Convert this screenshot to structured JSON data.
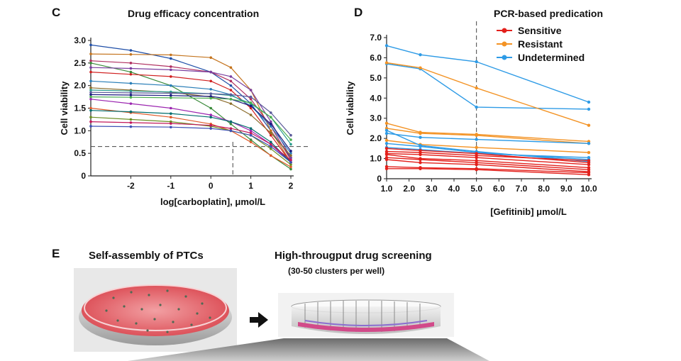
{
  "panels": {
    "c": {
      "letter": "C",
      "title": "Drug efficacy concentration"
    },
    "d": {
      "letter": "D",
      "title": "PCR-based predication"
    },
    "e": {
      "letter": "E",
      "left_title": "Self-assembly of PTCs",
      "right_title": "High-througput drug screening",
      "right_subtitle": "(30-50 clusters per well)"
    }
  },
  "chart_data": [
    {
      "type": "line",
      "title": "Drug efficacy concentration",
      "xlabel": "log[carboplatin], μmol/L",
      "ylabel": "Cell viability",
      "xlim": [
        -3,
        2
      ],
      "ylim": [
        0,
        3
      ],
      "x_ticks": [
        "-2",
        "-1",
        "0",
        "1",
        "2"
      ],
      "y_ticks": [
        "0",
        "0.5",
        "1.0",
        "1.5",
        "2.0",
        "2.5",
        "3.0"
      ],
      "reference_lines": {
        "y": 0.65,
        "x": 0.55
      },
      "grid": false,
      "x": [
        -3,
        -2,
        -1,
        0,
        0.5,
        1,
        1.5,
        2
      ],
      "series": [
        {
          "color": "#1f4fa8",
          "values": [
            2.9,
            2.78,
            2.6,
            2.3,
            2.0,
            1.6,
            1.0,
            0.4
          ]
        },
        {
          "color": "#c4741e",
          "values": [
            2.7,
            2.69,
            2.68,
            2.62,
            2.4,
            1.9,
            1.0,
            0.3
          ]
        },
        {
          "color": "#b03060",
          "values": [
            2.55,
            2.5,
            2.42,
            2.3,
            2.1,
            1.7,
            1.1,
            0.35
          ]
        },
        {
          "color": "#3a8a3a",
          "values": [
            2.5,
            2.3,
            2.0,
            1.5,
            1.15,
            0.8,
            0.45,
            0.15
          ]
        },
        {
          "color": "#7a3fa0",
          "values": [
            2.4,
            2.38,
            2.35,
            2.3,
            2.2,
            1.9,
            1.2,
            0.4
          ]
        },
        {
          "color": "#d02020",
          "values": [
            2.3,
            2.25,
            2.2,
            2.1,
            1.9,
            1.5,
            0.9,
            0.3
          ]
        },
        {
          "color": "#2b7fb8",
          "values": [
            2.1,
            2.05,
            2.0,
            1.92,
            1.8,
            1.55,
            1.1,
            0.5
          ]
        },
        {
          "color": "#8c6d2c",
          "values": [
            1.95,
            1.9,
            1.85,
            1.75,
            1.6,
            1.35,
            0.95,
            0.45
          ]
        },
        {
          "color": "#2a9d8f",
          "values": [
            1.9,
            1.88,
            1.86,
            1.82,
            1.78,
            1.6,
            1.3,
            0.7
          ]
        },
        {
          "color": "#5b5b9a",
          "values": [
            1.85,
            1.84,
            1.83,
            1.82,
            1.8,
            1.75,
            1.4,
            0.9
          ]
        },
        {
          "color": "#1a1a80",
          "values": [
            1.8,
            1.79,
            1.78,
            1.76,
            1.7,
            1.55,
            1.15,
            0.55
          ]
        },
        {
          "color": "#4caf50",
          "values": [
            1.75,
            1.74,
            1.73,
            1.72,
            1.7,
            1.62,
            1.3,
            0.8
          ]
        },
        {
          "color": "#9c27b0",
          "values": [
            1.7,
            1.6,
            1.5,
            1.35,
            1.2,
            1.0,
            0.7,
            0.3
          ]
        },
        {
          "color": "#e05a2a",
          "values": [
            1.5,
            1.4,
            1.3,
            1.15,
            1.0,
            0.75,
            0.45,
            0.2
          ]
        },
        {
          "color": "#006d6d",
          "values": [
            1.45,
            1.42,
            1.38,
            1.3,
            1.2,
            1.05,
            0.75,
            0.3
          ]
        },
        {
          "color": "#6b8e23",
          "values": [
            1.3,
            1.25,
            1.2,
            1.1,
            1.0,
            0.9,
            0.6,
            0.25
          ]
        },
        {
          "color": "#c2185b",
          "values": [
            1.2,
            1.18,
            1.16,
            1.12,
            1.05,
            0.95,
            0.7,
            0.35
          ]
        },
        {
          "color": "#3f51b5",
          "values": [
            1.1,
            1.09,
            1.08,
            1.05,
            1.0,
            0.9,
            0.65,
            0.3
          ]
        }
      ]
    },
    {
      "type": "line",
      "title": "PCR-based predication",
      "xlabel": "[Gefitinib]  μmol/L",
      "ylabel": "Cell viability",
      "xlim": [
        1.0,
        10.0
      ],
      "ylim": [
        0,
        7.0
      ],
      "x_ticks": [
        "1.0",
        "2.0",
        "3.0",
        "4.0",
        "5.0",
        "6.0",
        "7.0",
        "8.0",
        "9.0",
        "10.0"
      ],
      "y_ticks": [
        "0",
        "1.0",
        "2.0",
        "3.0",
        "4.0",
        "5.0",
        "6.0",
        "7.0"
      ],
      "reference_lines": {
        "x": 5.0
      },
      "grid": false,
      "legend": {
        "position": "top-right",
        "entries": [
          {
            "label": "Sensitive",
            "color": "#e3201b"
          },
          {
            "label": "Resistant",
            "color": "#f39325"
          },
          {
            "label": "Undetermined",
            "color": "#2e9be6"
          }
        ]
      },
      "x": [
        1.0,
        2.5,
        5.0,
        10.0
      ],
      "series": [
        {
          "group": "Undetermined",
          "color": "#2e9be6",
          "values": [
            6.6,
            6.15,
            5.8,
            3.8
          ]
        },
        {
          "group": "Undetermined",
          "color": "#2e9be6",
          "values": [
            5.7,
            5.45,
            3.55,
            3.45
          ]
        },
        {
          "group": "Resistant",
          "color": "#f39325",
          "values": [
            5.75,
            5.5,
            4.5,
            2.65
          ]
        },
        {
          "group": "Resistant",
          "color": "#f39325",
          "values": [
            2.75,
            2.3,
            2.2,
            1.85
          ]
        },
        {
          "group": "Resistant",
          "color": "#f39325",
          "values": [
            2.5,
            2.25,
            2.15,
            1.75
          ]
        },
        {
          "group": "Resistant",
          "color": "#f39325",
          "values": [
            1.9,
            1.7,
            1.55,
            1.3
          ]
        },
        {
          "group": "Undetermined",
          "color": "#2e9be6",
          "values": [
            2.4,
            1.65,
            1.35,
            0.85
          ]
        },
        {
          "group": "Undetermined",
          "color": "#2e9be6",
          "values": [
            2.25,
            2.05,
            1.95,
            1.75
          ]
        },
        {
          "group": "Undetermined",
          "color": "#2e9be6",
          "values": [
            1.75,
            1.6,
            1.3,
            0.95
          ]
        },
        {
          "group": "Undetermined",
          "color": "#2e9be6",
          "values": [
            1.55,
            1.45,
            1.25,
            1.05
          ]
        },
        {
          "group": "Sensitive",
          "color": "#e3201b",
          "values": [
            1.5,
            1.4,
            1.25,
            0.8
          ]
        },
        {
          "group": "Sensitive",
          "color": "#e3201b",
          "values": [
            1.35,
            1.3,
            1.15,
            0.9
          ]
        },
        {
          "group": "Sensitive",
          "color": "#e3201b",
          "values": [
            1.25,
            1.2,
            1.05,
            0.7
          ]
        },
        {
          "group": "Sensitive",
          "color": "#e3201b",
          "values": [
            1.2,
            1.0,
            0.9,
            0.55
          ]
        },
        {
          "group": "Sensitive",
          "color": "#e3201b",
          "values": [
            1.05,
            0.95,
            0.8,
            0.45
          ]
        },
        {
          "group": "Sensitive",
          "color": "#e3201b",
          "values": [
            0.95,
            0.8,
            0.7,
            0.35
          ]
        },
        {
          "group": "Sensitive",
          "color": "#e3201b",
          "values": [
            0.6,
            0.55,
            0.5,
            0.3
          ]
        },
        {
          "group": "Sensitive",
          "color": "#e3201b",
          "values": [
            0.5,
            0.5,
            0.45,
            0.2
          ]
        }
      ]
    }
  ]
}
